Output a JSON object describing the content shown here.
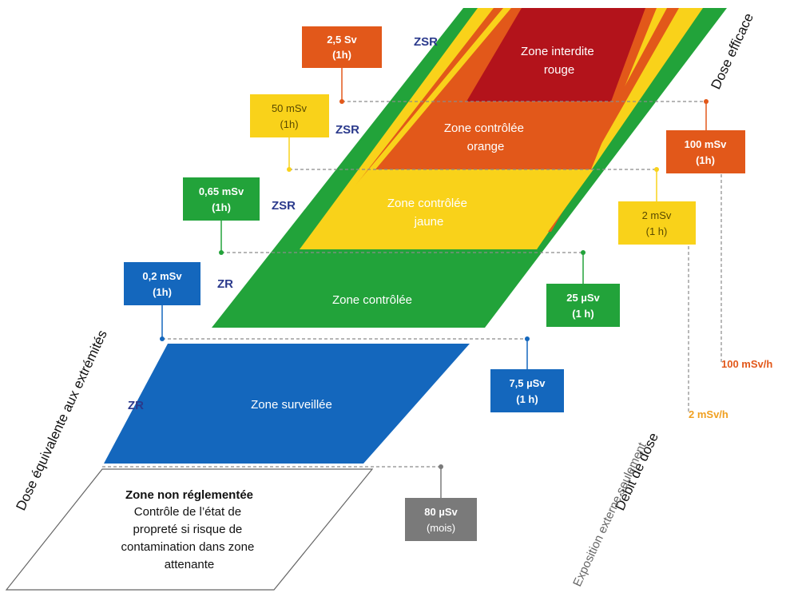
{
  "diagram": {
    "axes": {
      "effective_dose": "Dose efficace",
      "extremity_dose": "Dose équivalente aux extrémités",
      "dose_rate": "Débit de dose",
      "dose_rate_note": "Exposition externe seulement"
    },
    "zones": {
      "red": "Zone interdite|rouge",
      "orange": "Zone contrôlée|orange",
      "yellow": "Zone contrôlée|jaune",
      "green": "Zone contrôlée",
      "blue": "Zone surveillée",
      "none_title": "Zone non réglementée",
      "none_text": "Contrôle de l’état de|propreté si risque de|contamination dans zone|attenante"
    },
    "codes": {
      "zsr": "ZSR",
      "zr": "ZR"
    },
    "thresholds_left": [
      {
        "value": "2,5 Sv",
        "period": "(1h)",
        "color": "#e2581a"
      },
      {
        "value": "50 mSv",
        "period": "(1h)",
        "color": "#f9d21a"
      },
      {
        "value": "0,65 mSv",
        "period": "(1h)",
        "color": "#22a33a"
      },
      {
        "value": "0,2 mSv",
        "period": "(1h)",
        "color": "#1467bd"
      }
    ],
    "thresholds_right": [
      {
        "value": "100 mSv",
        "period": "(1h)",
        "color": "#e2581a"
      },
      {
        "value": "2 mSv",
        "period": "(1 h)",
        "color": "#f9d21a"
      },
      {
        "value": "25 µSv",
        "period": "(1 h)",
        "color": "#22a33a"
      },
      {
        "value": "7,5 µSv",
        "period": "(1 h)",
        "color": "#1467bd"
      },
      {
        "value": "80 µSv",
        "period": "(mois)",
        "color": "#7a7a7a"
      }
    ],
    "rates": [
      {
        "value": "100 mSv/h",
        "color": "#e2581a"
      },
      {
        "value": "2 mSv/h",
        "color": "#f0a020"
      }
    ],
    "colors": {
      "red": "#b3131b",
      "orange": "#e2581a",
      "yellow": "#f9d21a",
      "green": "#22a33a",
      "blue": "#1467bd",
      "gray": "#7a7a7a",
      "code_text": "#2b3a8c"
    }
  }
}
